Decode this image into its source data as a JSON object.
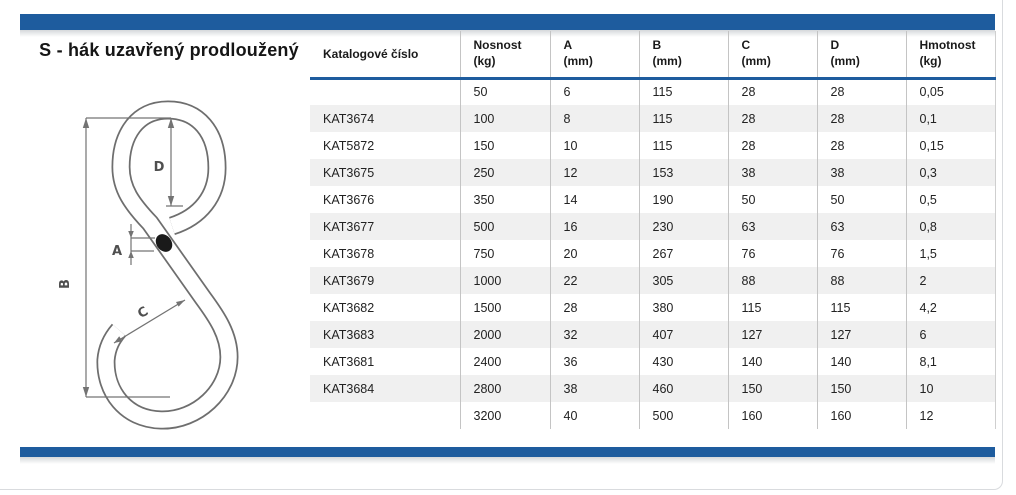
{
  "title": "S - hák uzavřený prodloužený",
  "colors": {
    "accent_blue": "#1e5c9e",
    "row_alt_background": "#f0f0f0",
    "grid_line": "#c4c4c4"
  },
  "drawing": {
    "description": "s-hook-technical-line-drawing",
    "labels": {
      "a": "A",
      "b": "B",
      "c": "C",
      "d": "D"
    }
  },
  "table": {
    "columns": [
      {
        "label": "Katalogové číslo",
        "unit": ""
      },
      {
        "label": "Nosnost",
        "unit": "(kg)"
      },
      {
        "label": "A",
        "unit": "(mm)"
      },
      {
        "label": "B",
        "unit": "(mm)"
      },
      {
        "label": "C",
        "unit": "(mm)"
      },
      {
        "label": "D",
        "unit": "(mm)"
      },
      {
        "label": "Hmotnost",
        "unit": "(kg)"
      }
    ],
    "rows": [
      [
        "",
        "50",
        "6",
        "115",
        "28",
        "28",
        "0,05"
      ],
      [
        "KAT3674",
        "100",
        "8",
        "115",
        "28",
        "28",
        "0,1"
      ],
      [
        "KAT5872",
        "150",
        "10",
        "115",
        "28",
        "28",
        "0,15"
      ],
      [
        "KAT3675",
        "250",
        "12",
        "153",
        "38",
        "38",
        "0,3"
      ],
      [
        "KAT3676",
        "350",
        "14",
        "190",
        "50",
        "50",
        "0,5"
      ],
      [
        "KAT3677",
        "500",
        "16",
        "230",
        "63",
        "63",
        "0,8"
      ],
      [
        "KAT3678",
        "750",
        "20",
        "267",
        "76",
        "76",
        "1,5"
      ],
      [
        "KAT3679",
        "1000",
        "22",
        "305",
        "88",
        "88",
        "2"
      ],
      [
        "KAT3682",
        "1500",
        "28",
        "380",
        "115",
        "115",
        "4,2"
      ],
      [
        "KAT3683",
        "2000",
        "32",
        "407",
        "127",
        "127",
        "6"
      ],
      [
        "KAT3681",
        "2400",
        "36",
        "430",
        "140",
        "140",
        "8,1"
      ],
      [
        "KAT3684",
        "2800",
        "38",
        "460",
        "150",
        "150",
        "10"
      ],
      [
        "",
        "3200",
        "40",
        "500",
        "160",
        "160",
        "12"
      ]
    ]
  }
}
